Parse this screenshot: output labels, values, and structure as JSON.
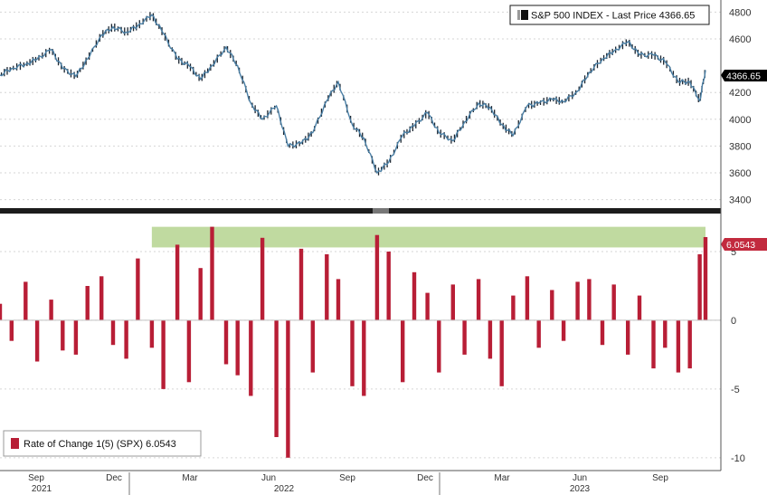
{
  "chart_data": [
    {
      "type": "line",
      "legend": "S&P 500 INDEX - Last Price 4366.65",
      "last_value_tag": "4366.65",
      "ylim": [
        3350,
        4850
      ],
      "yticks": [
        "3400",
        "3600",
        "3800",
        "4000",
        "4200",
        "4600",
        "4800"
      ],
      "legend_position": "top-right",
      "colors": {
        "line": "#4a7fa5",
        "candle": "#1b2530",
        "tag_bg": "#000000"
      },
      "x": [
        "2021-07-01",
        "2021-07-15",
        "2021-08-01",
        "2021-08-15",
        "2021-09-01",
        "2021-09-15",
        "2021-10-01",
        "2021-10-15",
        "2021-11-01",
        "2021-11-15",
        "2021-12-01",
        "2021-12-15",
        "2022-01-01",
        "2022-01-15",
        "2022-02-01",
        "2022-02-15",
        "2022-03-01",
        "2022-03-15",
        "2022-04-01",
        "2022-04-15",
        "2022-05-01",
        "2022-05-15",
        "2022-06-01",
        "2022-06-15",
        "2022-07-01",
        "2022-07-15",
        "2022-08-01",
        "2022-08-15",
        "2022-09-01",
        "2022-09-15",
        "2022-10-01",
        "2022-10-15",
        "2022-11-01",
        "2022-11-15",
        "2022-12-01",
        "2022-12-15",
        "2023-01-01",
        "2023-01-15",
        "2023-02-01",
        "2023-02-15",
        "2023-03-01",
        "2023-03-15",
        "2023-04-01",
        "2023-04-15",
        "2023-05-01",
        "2023-05-15",
        "2023-06-01",
        "2023-06-15",
        "2023-07-01",
        "2023-07-15",
        "2023-08-01",
        "2023-08-15",
        "2023-09-01",
        "2023-09-15",
        "2023-10-01",
        "2023-10-15",
        "2023-10-27",
        "2023-11-03"
      ],
      "values": [
        4330,
        4380,
        4410,
        4450,
        4520,
        4380,
        4320,
        4450,
        4630,
        4690,
        4650,
        4700,
        4780,
        4640,
        4450,
        4400,
        4300,
        4400,
        4540,
        4400,
        4120,
        4000,
        4100,
        3800,
        3820,
        3900,
        4140,
        4280,
        3960,
        3860,
        3600,
        3680,
        3880,
        3950,
        4050,
        3900,
        3840,
        3980,
        4120,
        4090,
        3960,
        3880,
        4100,
        4120,
        4150,
        4130,
        4210,
        4350,
        4450,
        4510,
        4580,
        4480,
        4480,
        4430,
        4280,
        4280,
        4140,
        4366.65
      ]
    },
    {
      "type": "bar",
      "legend": "Rate of Change 1(5) (SPX) 6.0543",
      "last_value_tag": "6.0543",
      "ylim": [
        -10.8,
        7.5
      ],
      "yticks": [
        "5",
        "0",
        "-5",
        "-10"
      ],
      "legend_position": "bottom-left",
      "colors": {
        "bar": "#b81e36",
        "highlight_band": "#b9d696",
        "tag_bg": "#c22a3e"
      },
      "highlight_band": [
        5.3,
        6.8
      ],
      "x": [
        "2021-07-01",
        "2021-07-15",
        "2021-08-01",
        "2021-08-15",
        "2021-09-01",
        "2021-09-15",
        "2021-10-01",
        "2021-10-15",
        "2021-11-01",
        "2021-11-15",
        "2021-12-01",
        "2021-12-15",
        "2022-01-01",
        "2022-01-15",
        "2022-02-01",
        "2022-02-15",
        "2022-03-01",
        "2022-03-15",
        "2022-04-01",
        "2022-04-15",
        "2022-05-01",
        "2022-05-15",
        "2022-06-01",
        "2022-06-15",
        "2022-07-01",
        "2022-07-15",
        "2022-08-01",
        "2022-08-15",
        "2022-09-01",
        "2022-09-15",
        "2022-10-01",
        "2022-10-15",
        "2022-11-01",
        "2022-11-15",
        "2022-12-01",
        "2022-12-15",
        "2023-01-01",
        "2023-01-15",
        "2023-02-01",
        "2023-02-15",
        "2023-03-01",
        "2023-03-15",
        "2023-04-01",
        "2023-04-15",
        "2023-05-01",
        "2023-05-15",
        "2023-06-01",
        "2023-06-15",
        "2023-07-01",
        "2023-07-15",
        "2023-08-01",
        "2023-08-15",
        "2023-09-01",
        "2023-09-15",
        "2023-10-01",
        "2023-10-15",
        "2023-10-27",
        "2023-11-03"
      ],
      "values": [
        1.2,
        -1.5,
        2.8,
        -3.0,
        1.5,
        -2.2,
        -2.5,
        2.5,
        3.2,
        -1.8,
        -2.8,
        4.5,
        -2.0,
        -5.0,
        5.5,
        -4.5,
        3.8,
        6.8,
        -3.2,
        -4.0,
        -5.5,
        6.0,
        -8.5,
        -10.0,
        5.2,
        -3.8,
        4.8,
        3.0,
        -4.8,
        -5.5,
        6.2,
        5.0,
        -4.5,
        3.5,
        2.0,
        -3.8,
        2.6,
        -2.5,
        3.0,
        -2.8,
        -4.8,
        1.8,
        3.2,
        -2.0,
        2.2,
        -1.5,
        2.8,
        3.0,
        -1.8,
        2.6,
        -2.5,
        1.8,
        -3.5,
        -2.0,
        -3.8,
        -3.5,
        4.8,
        6.0543
      ]
    }
  ],
  "x_axis": {
    "months": [
      "Sep",
      "Dec",
      "Mar",
      "Jun",
      "Sep",
      "Dec",
      "Mar",
      "Jun",
      "Sep"
    ],
    "years": [
      "2021",
      "2022",
      "2023"
    ]
  }
}
